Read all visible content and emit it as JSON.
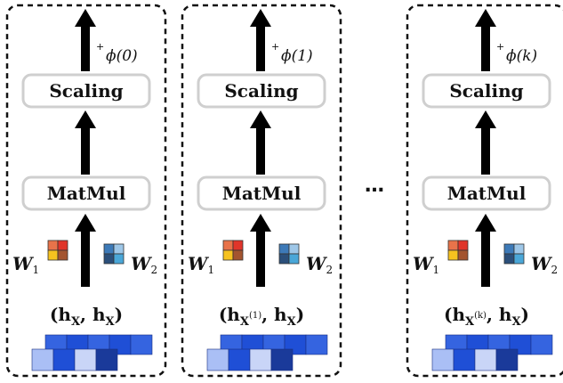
{
  "colors": {
    "frame": "#111111",
    "arrow": "#000000",
    "box_stroke": "#cfcfcf",
    "w1_cells": [
      "#e8734a",
      "#e0352a",
      "#f6c21f",
      "#a3542f"
    ],
    "w2_cells": [
      "#3d7ab8",
      "#9ec7e8",
      "#2b4f7a",
      "#4aa7d8"
    ],
    "token_blues": [
      "#3564e0",
      "#1f4fd6",
      "#7ea0f0",
      "#aabff5",
      "#c9d5f7",
      "#1a3a9a"
    ]
  },
  "columns": [
    {
      "phi_label": "ϕ(0)",
      "scaling_label": "Scaling",
      "matmul_label": "MatMul",
      "w1_label": "W",
      "w1_sub": "1",
      "w2_label": "W",
      "w2_sub": "2",
      "pair_label": "(h",
      "pair_sub1": "X",
      "pair_sup": "",
      "pair_mid": ", h",
      "pair_sub2": "X",
      "pair_end": ")"
    },
    {
      "phi_label": "ϕ(1)",
      "scaling_label": "Scaling",
      "matmul_label": "MatMul",
      "w1_label": "W",
      "w1_sub": "1",
      "w2_label": "W",
      "w2_sub": "2",
      "pair_label": "(h",
      "pair_sub1": "X",
      "pair_sup": "(1)",
      "pair_mid": ", h",
      "pair_sub2": "X",
      "pair_end": ")"
    },
    {
      "phi_label": "ϕ(k)",
      "scaling_label": "Scaling",
      "matmul_label": "MatMul",
      "w1_label": "W",
      "w1_sub": "1",
      "w2_label": "W",
      "w2_sub": "2",
      "pair_label": "(h",
      "pair_sub1": "X",
      "pair_sup": "(k)",
      "pair_mid": ", h",
      "pair_sub2": "X",
      "pair_end": ")"
    }
  ],
  "ellipsis": "…",
  "plus": "+"
}
